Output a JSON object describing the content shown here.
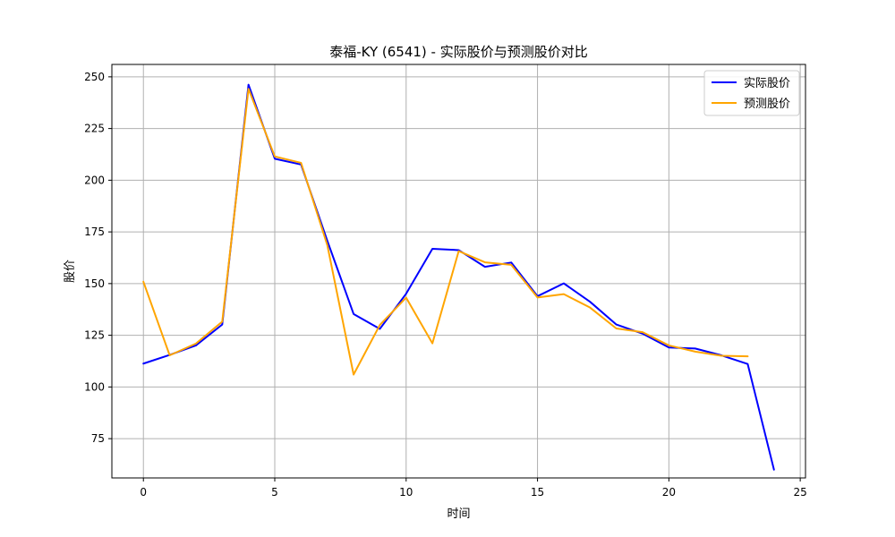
{
  "chart_data": {
    "type": "line",
    "title": "泰福-KY (6541) - 实际股价与预测股价对比",
    "xlabel": "时间",
    "ylabel": "股价",
    "xlim": [
      -1.2,
      25.2
    ],
    "ylim": [
      56,
      256
    ],
    "xticks": [
      0,
      5,
      10,
      15,
      20,
      25
    ],
    "yticks": [
      75,
      100,
      125,
      150,
      175,
      200,
      225,
      250
    ],
    "grid": true,
    "legend_position": "top-right",
    "series": [
      {
        "name": "实际股价",
        "color": "#0000ff",
        "x": [
          0,
          1,
          2,
          3,
          4,
          5,
          6,
          7,
          8,
          9,
          10,
          11,
          12,
          13,
          14,
          15,
          16,
          17,
          18,
          19,
          20,
          21,
          22,
          23,
          24
        ],
        "values": [
          111.3,
          115.5,
          120.1,
          130.2,
          246.2,
          210.4,
          207.6,
          170.7,
          135.3,
          128.1,
          145.1,
          166.8,
          166.2,
          158.1,
          160.2,
          143.9,
          150.1,
          141.2,
          130.2,
          125.8,
          119.1,
          118.6,
          115.3,
          111.1,
          60.0
        ]
      },
      {
        "name": "预测股价",
        "color": "#ffa500",
        "x": [
          0,
          1,
          2,
          3,
          4,
          5,
          6,
          7,
          8,
          9,
          10,
          11,
          12,
          13,
          14,
          15,
          16,
          17,
          18,
          19,
          20,
          21,
          22,
          23
        ],
        "values": [
          150.9,
          115.3,
          121.0,
          131.6,
          244.2,
          211.5,
          208.4,
          168.6,
          106.0,
          130.0,
          143.2,
          121.1,
          165.7,
          160.3,
          159.1,
          143.3,
          144.9,
          138.4,
          128.3,
          126.5,
          120.1,
          117.1,
          115.1,
          114.8
        ]
      }
    ]
  }
}
